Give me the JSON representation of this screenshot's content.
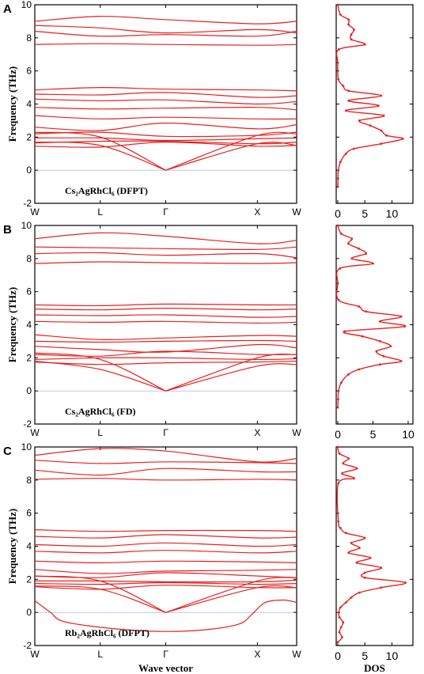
{
  "chart_data": [
    {
      "panel": "A",
      "type": "line",
      "compound_label": "Cs₂AgRhCl₆ (DFPT)",
      "ylabel": "Frequency (THz)",
      "xlabel": "",
      "ylim": [
        -2,
        10
      ],
      "yticks": [
        "-2",
        "0",
        "2",
        "4",
        "6",
        "8",
        "10"
      ],
      "kpoints": [
        "W",
        "L",
        "Γ",
        "X",
        "W"
      ],
      "kpos": [
        0,
        0.25,
        0.5,
        0.85,
        1.0
      ],
      "bands": [
        [
          9.0,
          9.3,
          9.1,
          8.85,
          9.0
        ],
        [
          8.75,
          8.6,
          8.3,
          8.5,
          8.3
        ],
        [
          8.4,
          8.1,
          8.2,
          8.1,
          8.4
        ],
        [
          7.6,
          7.65,
          7.6,
          7.55,
          7.6
        ],
        [
          4.85,
          5.0,
          4.9,
          4.85,
          4.8
        ],
        [
          4.6,
          4.55,
          4.7,
          4.4,
          4.5
        ],
        [
          4.3,
          4.2,
          4.25,
          4.0,
          4.15
        ],
        [
          3.8,
          3.7,
          3.75,
          3.8,
          3.65
        ],
        [
          3.3,
          3.1,
          3.2,
          3.1,
          3.1
        ],
        [
          2.6,
          2.4,
          2.85,
          2.5,
          2.75
        ],
        [
          2.2,
          2.3,
          2.05,
          2.1,
          2.3
        ],
        [
          1.95,
          1.95,
          1.8,
          1.9,
          1.95
        ],
        [
          1.65,
          1.75,
          1.75,
          1.6,
          1.7
        ],
        [
          1.45,
          1.4,
          1.7,
          1.45,
          1.5
        ]
      ],
      "acoustic": [
        [
          0.0,
          1.7
        ],
        [
          0.25,
          1.5
        ],
        [
          0.5,
          0.0
        ],
        [
          0.85,
          1.6
        ],
        [
          1.0,
          1.5
        ]
      ],
      "acoustic2": [
        [
          0.0,
          2.3
        ],
        [
          0.25,
          2.0
        ],
        [
          0.5,
          0.0
        ],
        [
          0.85,
          2.1
        ],
        [
          1.0,
          2.2
        ]
      ],
      "dos": {
        "xlim": [
          0,
          13
        ],
        "xticks": [
          "0",
          "5",
          "10"
        ],
        "freq": [
          -1.0,
          -0.5,
          0.0,
          0.5,
          1.0,
          1.3,
          1.6,
          1.9,
          2.1,
          2.4,
          2.7,
          3.0,
          3.3,
          3.6,
          3.9,
          4.2,
          4.5,
          4.8,
          5.1,
          5.5,
          6.5,
          7.3,
          7.6,
          7.9,
          8.2,
          8.5,
          8.8,
          9.1,
          9.4,
          10.0
        ],
        "values": [
          0.0,
          0.05,
          0.1,
          0.5,
          1.5,
          3.0,
          8.0,
          12.0,
          9.0,
          8.0,
          6.0,
          4.0,
          8.5,
          1.5,
          7.5,
          2.0,
          8.0,
          2.0,
          1.0,
          0.1,
          0.0,
          0.2,
          5.0,
          2.5,
          2.5,
          3.0,
          2.0,
          2.0,
          0.5,
          0.0
        ]
      }
    },
    {
      "panel": "B",
      "type": "line",
      "compound_label": "Cs₂AgRhCl₆ (FD)",
      "ylabel": "Frequency (THz)",
      "xlabel": "",
      "ylim": [
        -2,
        10
      ],
      "yticks": [
        "-2",
        "0",
        "2",
        "4",
        "6",
        "8",
        "10"
      ],
      "kpoints": [
        "W",
        "L",
        "Γ",
        "X",
        "W"
      ],
      "kpos": [
        0,
        0.25,
        0.5,
        0.85,
        1.0
      ],
      "bands": [
        [
          9.2,
          9.55,
          9.35,
          8.9,
          9.1
        ],
        [
          8.7,
          8.65,
          8.6,
          8.55,
          8.7
        ],
        [
          8.3,
          8.35,
          8.2,
          8.3,
          8.05
        ],
        [
          7.7,
          7.8,
          7.75,
          7.7,
          7.75
        ],
        [
          5.2,
          5.15,
          5.25,
          5.2,
          5.2
        ],
        [
          4.95,
          4.9,
          5.0,
          4.9,
          4.95
        ],
        [
          4.6,
          4.55,
          4.6,
          4.45,
          4.5
        ],
        [
          4.2,
          4.15,
          4.2,
          4.1,
          4.15
        ],
        [
          3.4,
          3.1,
          3.2,
          3.35,
          3.3
        ],
        [
          3.0,
          2.95,
          3.0,
          3.05,
          3.0
        ],
        [
          2.7,
          2.5,
          2.35,
          2.8,
          2.6
        ],
        [
          2.2,
          2.1,
          2.4,
          2.2,
          2.2
        ],
        [
          1.9,
          2.0,
          2.0,
          1.9,
          1.95
        ],
        [
          1.75,
          1.6,
          1.7,
          1.75,
          1.8
        ]
      ],
      "acoustic": [
        [
          0.0,
          1.8
        ],
        [
          0.25,
          1.3
        ],
        [
          0.5,
          0.0
        ],
        [
          0.85,
          1.5
        ],
        [
          1.0,
          1.6
        ]
      ],
      "acoustic2": [
        [
          0.0,
          2.3
        ],
        [
          0.25,
          1.9
        ],
        [
          0.5,
          0.0
        ],
        [
          0.85,
          2.0
        ],
        [
          1.0,
          2.2
        ]
      ],
      "dos": {
        "xlim": [
          0,
          10
        ],
        "xticks": [
          "0",
          "5",
          "10"
        ],
        "freq": [
          -1.0,
          -0.5,
          0.0,
          0.5,
          1.0,
          1.3,
          1.6,
          1.8,
          2.1,
          2.4,
          2.7,
          3.0,
          3.3,
          3.6,
          3.9,
          4.2,
          4.5,
          4.8,
          5.1,
          5.5,
          6.5,
          7.4,
          7.7,
          8.0,
          8.3,
          8.6,
          8.9,
          9.2,
          9.5,
          10.0
        ],
        "values": [
          0.0,
          0.05,
          0.1,
          0.5,
          1.5,
          3.0,
          6.0,
          9.0,
          6.5,
          5.5,
          7.5,
          6.0,
          3.5,
          1.0,
          9.5,
          6.0,
          9.0,
          4.0,
          3.0,
          0.1,
          0.0,
          0.3,
          5.0,
          2.0,
          4.0,
          3.0,
          1.5,
          2.0,
          0.5,
          0.0
        ]
      }
    },
    {
      "panel": "C",
      "type": "line",
      "compound_label": "Rb₂AgRhCl₆ (DFPT)",
      "ylabel": "Frequency (THz)",
      "xlabel": "Wave vector",
      "ylim": [
        -2,
        10
      ],
      "yticks": [
        "-2",
        "0",
        "2",
        "4",
        "6",
        "8",
        "10"
      ],
      "kpoints": [
        "W",
        "L",
        "Γ",
        "X",
        "W"
      ],
      "kpos": [
        0,
        0.25,
        0.5,
        0.85,
        1.0
      ],
      "bands": [
        [
          9.5,
          9.9,
          9.75,
          9.1,
          9.3
        ],
        [
          9.2,
          9.0,
          9.1,
          9.05,
          9.0
        ],
        [
          8.6,
          8.3,
          8.7,
          8.5,
          8.5
        ],
        [
          8.05,
          8.1,
          8.0,
          8.05,
          8.0
        ],
        [
          5.0,
          4.9,
          4.95,
          4.95,
          4.9
        ],
        [
          4.6,
          4.5,
          4.7,
          4.5,
          4.55
        ],
        [
          4.1,
          4.0,
          4.2,
          4.0,
          4.1
        ],
        [
          3.7,
          3.6,
          3.75,
          3.6,
          3.7
        ],
        [
          3.1,
          3.0,
          3.1,
          3.05,
          3.0
        ],
        [
          2.6,
          2.35,
          2.5,
          2.55,
          2.6
        ],
        [
          2.2,
          2.1,
          2.4,
          2.2,
          2.1
        ],
        [
          1.9,
          1.9,
          1.85,
          1.85,
          1.95
        ],
        [
          1.75,
          1.7,
          1.8,
          1.7,
          1.75
        ],
        [
          1.55,
          1.4,
          1.65,
          1.5,
          1.5
        ]
      ],
      "acoustic": [
        [
          0.0,
          1.6
        ],
        [
          0.25,
          1.4
        ],
        [
          0.5,
          0.0
        ],
        [
          0.85,
          1.5
        ],
        [
          1.0,
          1.5
        ]
      ],
      "acoustic2": [
        [
          0.0,
          2.2
        ],
        [
          0.25,
          1.9
        ],
        [
          0.5,
          0.0
        ],
        [
          0.85,
          1.9
        ],
        [
          1.0,
          2.1
        ]
      ],
      "soft_mode": [
        [
          0.0,
          0.7
        ],
        [
          0.06,
          0.0
        ],
        [
          0.1,
          -0.5
        ],
        [
          0.2,
          -0.8
        ],
        [
          0.35,
          -1.05
        ],
        [
          0.5,
          -1.15
        ],
        [
          0.65,
          -1.05
        ],
        [
          0.78,
          -0.7
        ],
        [
          0.83,
          -0.1
        ],
        [
          0.88,
          0.6
        ],
        [
          0.95,
          0.75
        ],
        [
          1.0,
          0.6
        ]
      ],
      "dos": {
        "xlim": [
          0,
          13
        ],
        "xticks": [
          "0",
          "5",
          "10"
        ],
        "freq": [
          -1.8,
          -1.5,
          -1.2,
          -0.9,
          -0.6,
          -0.3,
          0.0,
          0.3,
          0.6,
          0.9,
          1.2,
          1.5,
          1.8,
          2.1,
          2.4,
          2.7,
          3.0,
          3.3,
          3.6,
          3.9,
          4.2,
          4.5,
          4.8,
          5.1,
          5.5,
          7.8,
          8.1,
          8.4,
          8.7,
          9.0,
          9.3,
          9.6,
          10.0
        ],
        "values": [
          0.0,
          0.8,
          0.3,
          0.6,
          1.0,
          0.3,
          0.2,
          0.5,
          1.5,
          2.5,
          4.0,
          8.0,
          12.5,
          5.0,
          5.0,
          8.0,
          3.5,
          6.0,
          2.0,
          4.0,
          2.5,
          5.0,
          1.5,
          0.5,
          0.1,
          0.1,
          3.0,
          0.8,
          3.5,
          1.0,
          2.0,
          0.3,
          0.0
        ]
      }
    }
  ],
  "dos_xlabel": "DOS"
}
